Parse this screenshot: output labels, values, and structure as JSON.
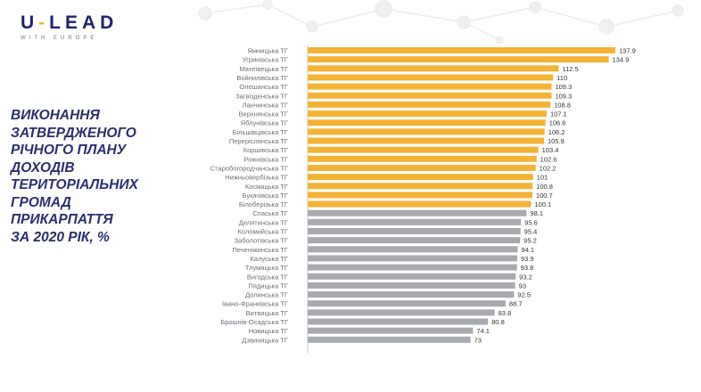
{
  "logo": {
    "main_a": "U",
    "dash": "-",
    "main_b": "LEAD",
    "sub": "WITH EUROPE"
  },
  "title_lines": [
    "ВИКОНАННЯ",
    "ЗАТВЕРДЖЕНОГО",
    "РІЧНОГО ПЛАНУ",
    "ДОХОДІВ",
    "ТЕРИТОРІАЛЬНИХ",
    "ГРОМАД",
    "ПРИКАРПАТТЯ",
    "ЗА 2020 РІК, %"
  ],
  "chart_data": {
    "type": "bar",
    "orientation": "horizontal",
    "title": "Виконання затвердженого річного плану доходів територіальних громад Прикарпаття за 2020 рік, %",
    "colors": {
      "above_100": "#f5b335",
      "below_100": "#a7aaaf"
    },
    "categories": [
      "Ямницька ТГ",
      "Угринівська ТГ",
      "Матеївецька ТГ",
      "Войнилівська ТГ",
      "Олешанська ТГ",
      "Загвізденська ТГ",
      "Ланчинська ТГ",
      "Верхнянська ТГ",
      "Яблунівська ТГ",
      "Більшівцівська ТГ",
      "Переріслянська ТГ",
      "Коршівська ТГ",
      "Рожнівська ТГ",
      "Старобогородчанська ТГ",
      "Нижньовербізька ТГ",
      "Космацька ТГ",
      "Букачівська ТГ",
      "Білоберізька ТГ",
      "Спаська ТГ",
      "Делятинська ТГ",
      "Коломийська ТГ",
      "Заболотівська ТГ",
      "Печеніжинська ТГ",
      "Калуська ТГ",
      "Тлумацька ТГ",
      "Вигодська ТГ",
      "Пядицька ТГ",
      "Долинська ТГ",
      "Івано-Франківська ТГ",
      "Витвицька ТГ",
      "Брошнів-Осадська ТГ",
      "Новицька ТГ",
      "Дзвиняцька ТГ"
    ],
    "values": [
      137.9,
      134.9,
      112.5,
      110,
      109.3,
      109.3,
      108.8,
      107.1,
      106.6,
      106.2,
      105.9,
      103.4,
      102.6,
      102.2,
      101,
      100.8,
      100.7,
      100.1,
      98.1,
      95.6,
      95.4,
      95.2,
      94.1,
      93.9,
      93.8,
      93.2,
      93,
      92.5,
      88.7,
      83.8,
      80.8,
      74.1,
      73
    ],
    "xlim": [
      0,
      140
    ]
  }
}
